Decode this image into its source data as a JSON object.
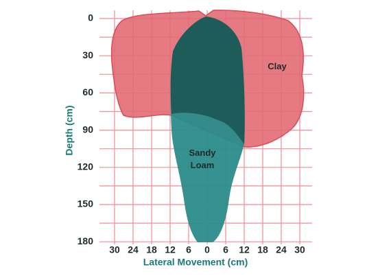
{
  "y_axis": {
    "label": "Depth (cm)",
    "ticks": [
      "0",
      "30",
      "60",
      "90",
      "120",
      "150",
      "180"
    ]
  },
  "x_axis": {
    "label": "Lateral Movement (cm)",
    "ticks": [
      "30",
      "24",
      "18",
      "12",
      "6",
      "0",
      "6",
      "12",
      "18",
      "24",
      "30"
    ]
  },
  "regions": [
    {
      "label": "Clay"
    },
    {
      "label": "Sandy Loam"
    }
  ]
}
